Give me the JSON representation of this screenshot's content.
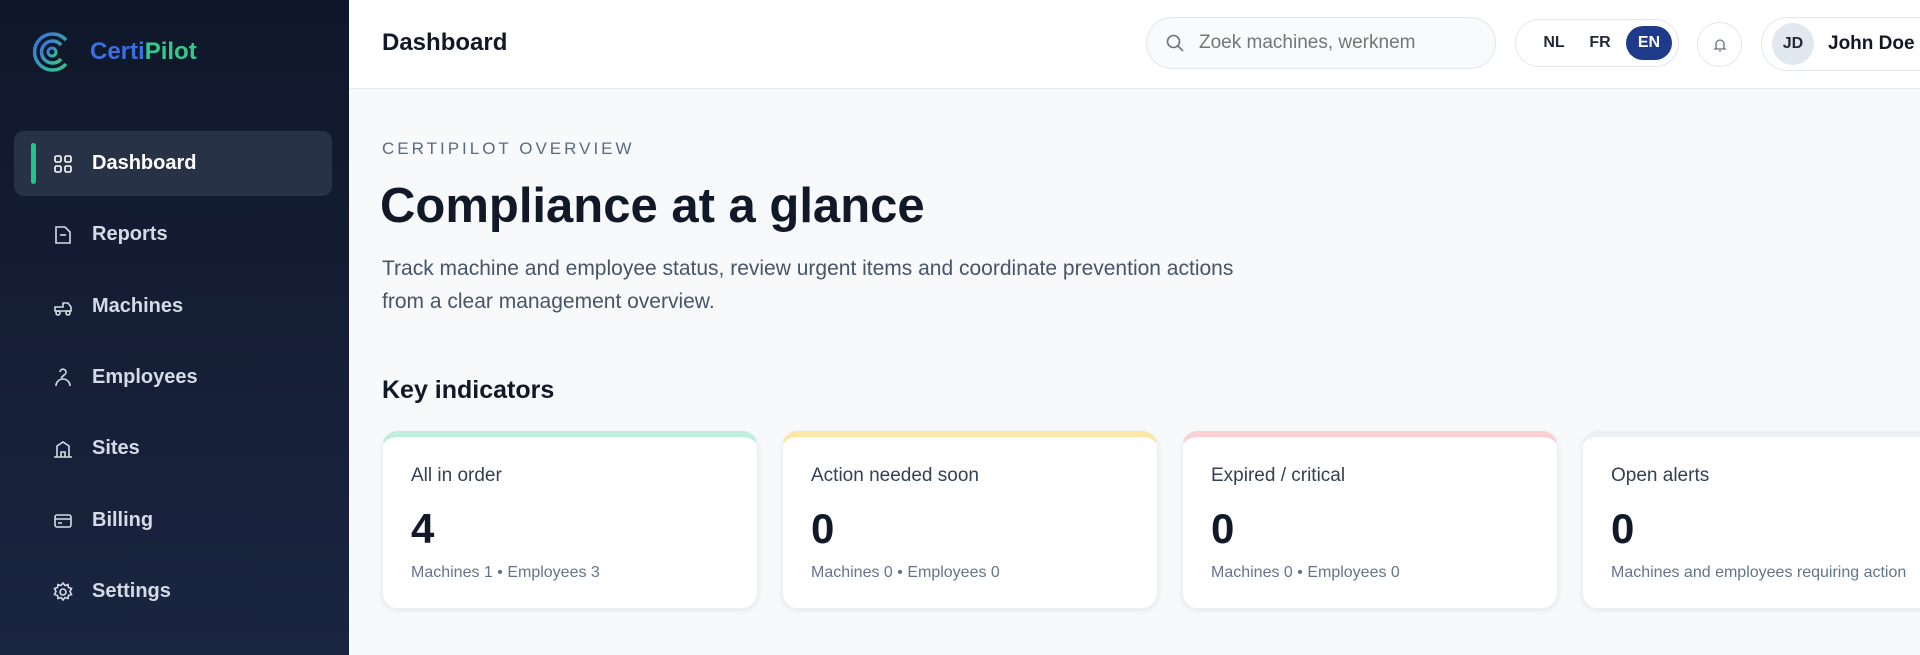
{
  "brand": {
    "name_part1": "Certi",
    "name_part2": "Pilot"
  },
  "sidebar": {
    "items": [
      {
        "label": "Dashboard",
        "icon": "grid-icon",
        "active": true
      },
      {
        "label": "Reports",
        "icon": "document-icon"
      },
      {
        "label": "Machines",
        "icon": "forklift-icon"
      },
      {
        "label": "Employees",
        "icon": "person-icon"
      },
      {
        "label": "Sites",
        "icon": "building-icon"
      },
      {
        "label": "Billing",
        "icon": "credit-card-icon"
      },
      {
        "label": "Settings",
        "icon": "gear-icon"
      }
    ]
  },
  "header": {
    "title": "Dashboard",
    "search": {
      "placeholder": "Zoek machines, werknem",
      "value": ""
    },
    "languages": [
      "NL",
      "FR",
      "EN"
    ],
    "active_language": "EN",
    "user": {
      "initials": "JD",
      "name": "John Doe"
    }
  },
  "main": {
    "eyebrow": "CERTIPILOT OVERVIEW",
    "headline": "Compliance at a glance",
    "intro_line1": "Track machine and employee status, review urgent items and coordinate prevention actions",
    "intro_line2": "from a clear management overview.",
    "section_title": "Key indicators",
    "cards": [
      {
        "label": "All in order",
        "value": "4",
        "sub": "Machines 1 • Employees 3",
        "accent": "#bfeedd"
      },
      {
        "label": "Action needed soon",
        "value": "0",
        "sub": "Machines 0 • Employees 0",
        "accent": "#fbe7a6"
      },
      {
        "label": "Expired / critical",
        "value": "0",
        "sub": "Machines 0 • Employees 0",
        "accent": "#fbd0d3"
      },
      {
        "label": "Open alerts",
        "value": "0",
        "sub": "Machines and employees requiring action",
        "accent": "#eef1f4"
      }
    ]
  },
  "colors": {
    "sidebar": "#0f172a",
    "active_indicator": "#22c58b",
    "lang_active": "#1e3a8a",
    "brand_blue": "#3b6fe0",
    "brand_green": "#34c98a"
  }
}
